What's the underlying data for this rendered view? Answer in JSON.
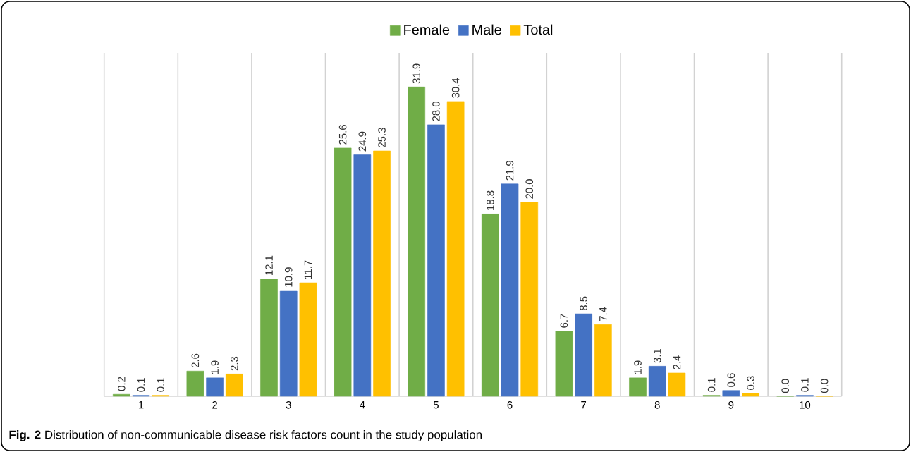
{
  "chart_data": {
    "type": "bar",
    "categories": [
      "1",
      "2",
      "3",
      "4",
      "5",
      "6",
      "7",
      "8",
      "9",
      "10"
    ],
    "series": [
      {
        "name": "Female",
        "color": "#70ad47",
        "values": [
          0.2,
          2.6,
          12.1,
          25.6,
          31.9,
          18.8,
          6.7,
          1.9,
          0.1,
          0.0
        ],
        "value_labels": [
          "0.2",
          "2.6",
          "12.1",
          "25.6",
          "31.9",
          "18.8",
          "6.7",
          "1.9",
          "0.1",
          "0.0"
        ]
      },
      {
        "name": "Male",
        "color": "#4472c4",
        "values": [
          0.1,
          1.9,
          10.9,
          24.9,
          28.0,
          21.9,
          8.5,
          3.1,
          0.6,
          0.1
        ],
        "value_labels": [
          "0.1",
          "1.9",
          "10.9",
          "24.9",
          "28.0",
          "21.9",
          "8.5",
          "3.1",
          "0.6",
          "0.1"
        ]
      },
      {
        "name": "Total",
        "color": "#ffc000",
        "values": [
          0.1,
          2.3,
          11.7,
          25.3,
          30.4,
          20.0,
          7.4,
          2.4,
          0.3,
          0.0
        ],
        "value_labels": [
          "0.1",
          "2.3",
          "11.7",
          "25.3",
          "30.4",
          "20.0",
          "7.4",
          "2.4",
          "0.3",
          "0.0"
        ]
      }
    ],
    "grid": "x",
    "legend": "top",
    "annotations": [
      "**Fig. 2** Distribution of non-communicable disease risk factors count in the study population"
    ]
  }
}
